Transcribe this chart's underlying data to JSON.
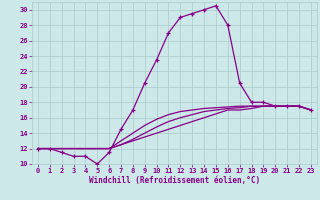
{
  "xlabel": "Windchill (Refroidissement éolien,°C)",
  "background_color": "#cce8e8",
  "grid_color": "#aacccc",
  "line_color": "#880088",
  "xlim": [
    -0.5,
    23.5
  ],
  "ylim": [
    10,
    31
  ],
  "xticks": [
    0,
    1,
    2,
    3,
    4,
    5,
    6,
    7,
    8,
    9,
    10,
    11,
    12,
    13,
    14,
    15,
    16,
    17,
    18,
    19,
    20,
    21,
    22,
    23
  ],
  "yticks": [
    10,
    12,
    14,
    16,
    18,
    20,
    22,
    24,
    26,
    28,
    30
  ],
  "line1_x": [
    0,
    1,
    2,
    3,
    4,
    5,
    6,
    7,
    8,
    9,
    10,
    11,
    12,
    13,
    14,
    15,
    16,
    17,
    18,
    19,
    20,
    21,
    22,
    23
  ],
  "line1_y": [
    12,
    12,
    11.5,
    11,
    11,
    10,
    11.5,
    14.5,
    17,
    20.5,
    23.5,
    27,
    29,
    29.5,
    30,
    30.5,
    28,
    20.5,
    18,
    18,
    17.5,
    17.5,
    17.5,
    17
  ],
  "line2_x": [
    0,
    1,
    2,
    3,
    4,
    5,
    6,
    7,
    8,
    9,
    10,
    11,
    12,
    13,
    14,
    15,
    16,
    17,
    18,
    19,
    20,
    21,
    22,
    23
  ],
  "line2_y": [
    12,
    12,
    12,
    12,
    12,
    12,
    12,
    12.5,
    13,
    13.5,
    14,
    14.5,
    15,
    15.5,
    16,
    16.5,
    17,
    17,
    17.2,
    17.5,
    17.5,
    17.5,
    17.5,
    17
  ],
  "line3_x": [
    0,
    1,
    2,
    3,
    4,
    5,
    6,
    7,
    8,
    9,
    10,
    11,
    12,
    13,
    14,
    15,
    16,
    17,
    18,
    19,
    20,
    21,
    22,
    23
  ],
  "line3_y": [
    12,
    12,
    12,
    12,
    12,
    12,
    12,
    12.5,
    13.2,
    14.0,
    14.8,
    15.5,
    16.0,
    16.4,
    16.8,
    17.0,
    17.2,
    17.3,
    17.5,
    17.5,
    17.5,
    17.5,
    17.5,
    17
  ],
  "line4_x": [
    0,
    1,
    2,
    3,
    4,
    5,
    6,
    7,
    8,
    9,
    10,
    11,
    12,
    13,
    14,
    15,
    16,
    17,
    18,
    19,
    20,
    21,
    22,
    23
  ],
  "line4_y": [
    12,
    12,
    12,
    12,
    12,
    12,
    12,
    13.0,
    14.0,
    15.0,
    15.8,
    16.4,
    16.8,
    17.0,
    17.2,
    17.3,
    17.4,
    17.5,
    17.5,
    17.5,
    17.5,
    17.5,
    17.5,
    17
  ]
}
